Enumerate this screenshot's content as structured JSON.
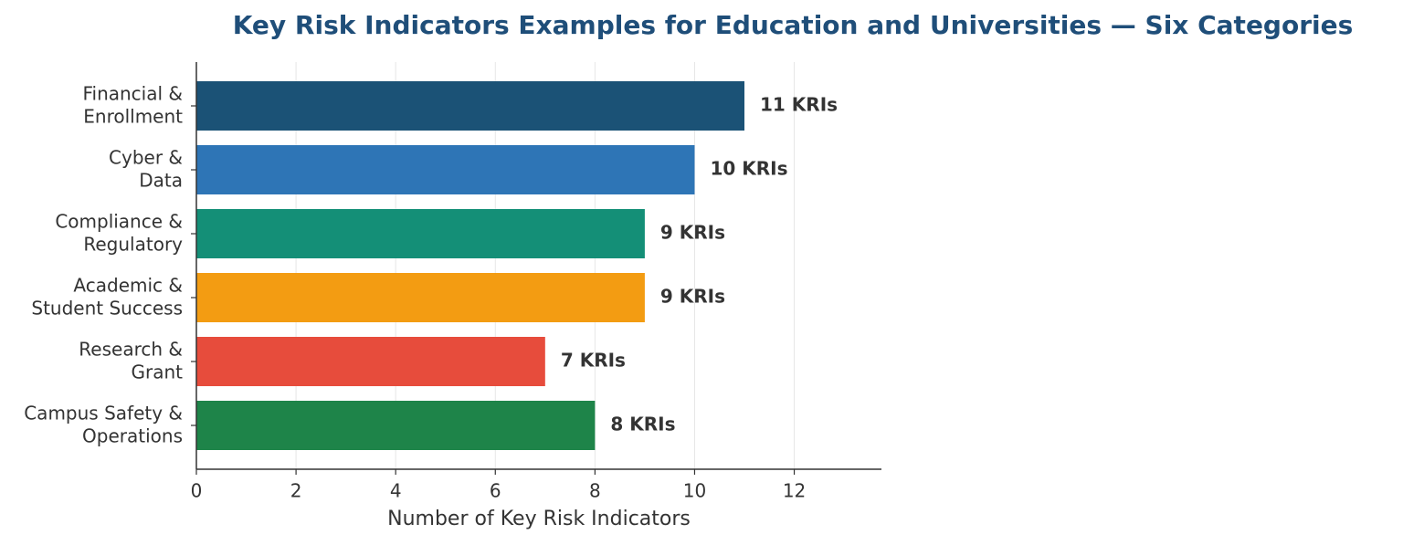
{
  "chart_data": {
    "type": "bar",
    "orientation": "horizontal",
    "title": "Key Risk Indicators Examples for Education and Universities — Six Categories",
    "x_label": "Number of Key Risk Indicators",
    "categories": [
      "Financial &\nEnrollment",
      "Cyber &\nData",
      "Compliance &\nRegulatory",
      "Academic &\nStudent Success",
      "Research &\nGrant",
      "Campus Safety &\nOperations"
    ],
    "values": [
      11,
      10,
      9,
      9,
      7,
      8
    ],
    "value_labels": [
      "11 KRIs",
      "10 KRIs",
      "9 KRIs",
      "9 KRIs",
      "7 KRIs",
      "8 KRIs"
    ],
    "colors": [
      "#1b5276",
      "#2e75b6",
      "#148f77",
      "#f39c12",
      "#e74c3c",
      "#1e8449"
    ],
    "xlim": [
      0,
      13.75
    ],
    "xticks": [
      0,
      2,
      4,
      6,
      8,
      10,
      12
    ],
    "grid": true
  }
}
